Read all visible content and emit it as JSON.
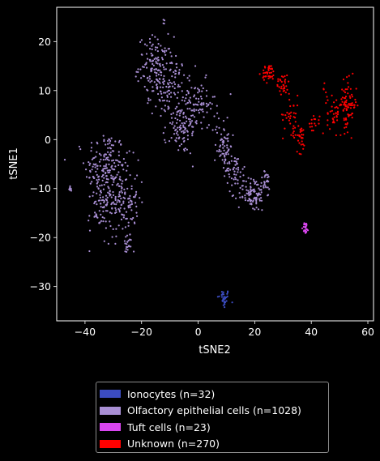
{
  "chart_data": {
    "type": "scatter",
    "title": "",
    "xlabel": "tSNE2",
    "ylabel": "tSNE1",
    "xlim": [
      -50,
      62
    ],
    "ylim": [
      -37,
      27
    ],
    "xticks": [
      -40,
      -20,
      0,
      20,
      40,
      60
    ],
    "yticks": [
      -30,
      -20,
      -10,
      0,
      10,
      20
    ],
    "xtick_labels": [
      "−40",
      "−20",
      "0",
      "20",
      "40",
      "60"
    ],
    "ytick_labels": [
      "−30",
      "−20",
      "−10",
      "0",
      "10",
      "20"
    ],
    "grid": false,
    "legend_position": "below",
    "series": [
      {
        "name": "Ionocytes (n=32)",
        "color": "#3b4cc0",
        "clusters": [
          {
            "cx": 9,
            "cy": -32.5,
            "sx": 1.1,
            "sy": 1.0,
            "n": 32
          }
        ]
      },
      {
        "name": "Olfactory epithelial cells (n=1028)",
        "color": "#a98fd4",
        "clusters": [
          {
            "cx": -45,
            "cy": -9.8,
            "sx": 0.4,
            "sy": 0.4,
            "n": 8
          },
          {
            "cx": -33,
            "cy": -6,
            "sx": 3.5,
            "sy": 4,
            "n": 170
          },
          {
            "cx": -27,
            "cy": -12,
            "sx": 3,
            "sy": 4,
            "n": 150
          },
          {
            "cx": -35,
            "cy": -15,
            "sx": 2,
            "sy": 2,
            "n": 40
          },
          {
            "cx": -25,
            "cy": -21.5,
            "sx": 0.8,
            "sy": 1.2,
            "n": 20
          },
          {
            "cx": -15,
            "cy": 15,
            "sx": 3,
            "sy": 3,
            "n": 120
          },
          {
            "cx": -10,
            "cy": 11,
            "sx": 3,
            "sy": 3,
            "n": 110
          },
          {
            "cx": -6,
            "cy": 2,
            "sx": 3,
            "sy": 2.5,
            "n": 90
          },
          {
            "cx": 0,
            "cy": 7,
            "sx": 3,
            "sy": 2.5,
            "n": 80
          },
          {
            "cx": -12,
            "cy": 24,
            "sx": 0.4,
            "sy": 0.3,
            "n": 4
          },
          {
            "cx": 9,
            "cy": -1,
            "sx": 1.5,
            "sy": 3,
            "n": 70
          },
          {
            "cx": 13,
            "cy": -6,
            "sx": 1.5,
            "sy": 1.5,
            "n": 40
          },
          {
            "cx": 19,
            "cy": -11,
            "sx": 2.5,
            "sy": 1.8,
            "n": 100
          },
          {
            "cx": 24,
            "cy": -8.5,
            "sx": 1,
            "sy": 1,
            "n": 26
          }
        ]
      },
      {
        "name": "Tuft cells (n=23)",
        "color": "#d946ef",
        "clusters": [
          {
            "cx": 38,
            "cy": -18,
            "sx": 0.5,
            "sy": 0.6,
            "n": 23
          }
        ]
      },
      {
        "name": "Unknown (n=270)",
        "color": "#ff0000",
        "clusters": [
          {
            "cx": 25,
            "cy": 13.5,
            "sx": 1.2,
            "sy": 0.9,
            "n": 40
          },
          {
            "cx": 30,
            "cy": 11.5,
            "sx": 1.2,
            "sy": 1.2,
            "n": 30
          },
          {
            "cx": 33,
            "cy": 5,
            "sx": 1.5,
            "sy": 2,
            "n": 35
          },
          {
            "cx": 36,
            "cy": 0.5,
            "sx": 1.2,
            "sy": 1.5,
            "n": 30
          },
          {
            "cx": 41,
            "cy": 3.5,
            "sx": 1,
            "sy": 0.8,
            "n": 15
          },
          {
            "cx": 48,
            "cy": 5.5,
            "sx": 1.2,
            "sy": 2,
            "n": 35
          },
          {
            "cx": 53,
            "cy": 7,
            "sx": 1.5,
            "sy": 2.5,
            "n": 80
          },
          {
            "cx": 45,
            "cy": 10,
            "sx": 1,
            "sy": 0.8,
            "n": 5
          }
        ]
      }
    ]
  }
}
